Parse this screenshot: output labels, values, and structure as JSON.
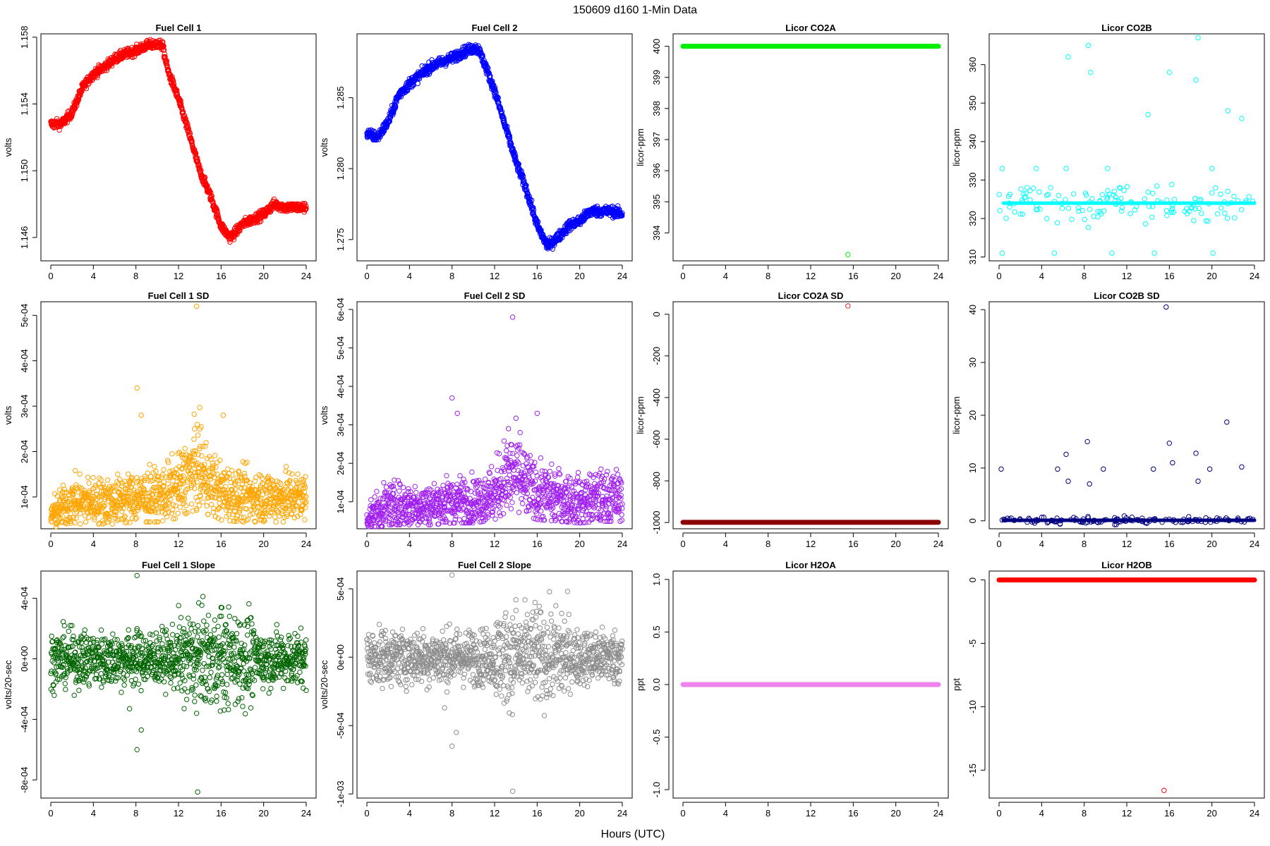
{
  "figure": {
    "title": "150609   d160   1-Min Data",
    "xlabel": "Hours (UTC)"
  },
  "chart_data": [
    {
      "type": "scatter",
      "title": "Fuel Cell 1",
      "ylabel": "volts",
      "color": "#ff0000",
      "xlim": [
        0,
        24
      ],
      "ylim": [
        1.1446,
        1.1582
      ],
      "xticks": [
        0,
        4,
        8,
        12,
        16,
        20,
        24
      ],
      "yticks": [
        1.146,
        1.15,
        1.154,
        1.158
      ],
      "yticklabels": [
        "1.146",
        "1.150",
        "1.154",
        "1.158"
      ],
      "series": [
        {
          "x": [
            0,
            1,
            2,
            3,
            4,
            5,
            6,
            7,
            8,
            9,
            10,
            10.5,
            11,
            12,
            13,
            14,
            15,
            16,
            16.8,
            17.2,
            18,
            19,
            20,
            21,
            22,
            23,
            24
          ],
          "y": [
            1.1528,
            1.1528,
            1.1535,
            1.155,
            1.1558,
            1.1562,
            1.1567,
            1.157,
            1.1572,
            1.1575,
            1.1576,
            1.1575,
            1.156,
            1.1543,
            1.1522,
            1.15,
            1.1485,
            1.1467,
            1.146,
            1.1462,
            1.1468,
            1.1471,
            1.1474,
            1.148,
            1.1478,
            1.1478,
            1.1478
          ]
        }
      ]
    },
    {
      "type": "scatter",
      "title": "Fuel Cell 2",
      "ylabel": "volts",
      "color": "#0000ff",
      "xlim": [
        0,
        24
      ],
      "ylim": [
        1.2735,
        1.2895
      ],
      "xticks": [
        0,
        4,
        8,
        12,
        16,
        20,
        24
      ],
      "yticks": [
        1.275,
        1.28,
        1.285
      ],
      "yticklabels": [
        "1.275",
        "1.280",
        "1.285"
      ],
      "series": [
        {
          "x": [
            0,
            1,
            2,
            3,
            4,
            5,
            6,
            7,
            8,
            9,
            10,
            10.5,
            11,
            12,
            13,
            14,
            15,
            16,
            17,
            18,
            19,
            20,
            21,
            22,
            23,
            24
          ],
          "y": [
            1.2825,
            1.2822,
            1.2833,
            1.2852,
            1.286,
            1.2866,
            1.2872,
            1.2875,
            1.2878,
            1.2882,
            1.2885,
            1.2884,
            1.2875,
            1.2855,
            1.283,
            1.2805,
            1.2785,
            1.276,
            1.2745,
            1.2752,
            1.276,
            1.2763,
            1.277,
            1.277,
            1.277,
            1.2768
          ]
        }
      ]
    },
    {
      "type": "scatter",
      "title": "Licor CO2A",
      "ylabel": "licor-ppm",
      "color": "#00ee00",
      "xlim": [
        0,
        24
      ],
      "ylim": [
        393.1,
        400.4
      ],
      "xticks": [
        0,
        4,
        8,
        12,
        16,
        20,
        24
      ],
      "yticks": [
        394,
        395,
        396,
        397,
        398,
        399,
        400
      ],
      "yticklabels": [
        "394",
        "395",
        "396",
        "397",
        "398",
        "399",
        "400"
      ],
      "series": [
        {
          "x": [
            0,
            24
          ],
          "y": [
            400,
            400
          ]
        }
      ],
      "outliers": [
        {
          "x": 15.5,
          "y": 393.3
        }
      ]
    },
    {
      "type": "scatter",
      "title": "Licor CO2B",
      "ylabel": "licor-ppm",
      "color": "#00ffff",
      "xlim": [
        0,
        24
      ],
      "ylim": [
        309,
        368
      ],
      "xticks": [
        0,
        4,
        8,
        12,
        16,
        20,
        24
      ],
      "yticks": [
        310,
        320,
        330,
        340,
        350,
        360
      ],
      "yticklabels": [
        "310",
        "320",
        "330",
        "340",
        "350",
        "360"
      ],
      "baseline": 324,
      "outliers": [
        {
          "x": 6.5,
          "y": 362
        },
        {
          "x": 8.4,
          "y": 365
        },
        {
          "x": 8.6,
          "y": 358
        },
        {
          "x": 18.7,
          "y": 367
        },
        {
          "x": 18.5,
          "y": 356
        },
        {
          "x": 16.0,
          "y": 358
        },
        {
          "x": 14.0,
          "y": 347
        },
        {
          "x": 21.5,
          "y": 348
        },
        {
          "x": 22.8,
          "y": 346
        },
        {
          "x": 0.3,
          "y": 311
        },
        {
          "x": 5.2,
          "y": 311
        },
        {
          "x": 10.6,
          "y": 311
        },
        {
          "x": 14.6,
          "y": 311
        },
        {
          "x": 20.1,
          "y": 311
        },
        {
          "x": 0.3,
          "y": 333
        },
        {
          "x": 6.3,
          "y": 333
        },
        {
          "x": 10.2,
          "y": 333
        },
        {
          "x": 20.0,
          "y": 333
        },
        {
          "x": 3.5,
          "y": 333
        }
      ]
    },
    {
      "type": "scatter",
      "title": "Fuel Cell 1 SD",
      "ylabel": "volts",
      "color": "#ffa500",
      "xlim": [
        0,
        24
      ],
      "ylim": [
        3e-05,
        0.00053
      ],
      "xticks": [
        0,
        4,
        8,
        12,
        16,
        20,
        24
      ],
      "yticks": [
        0.0001,
        0.0002,
        0.0003,
        0.0004,
        0.0005
      ],
      "yticklabels": [
        "1e-04",
        "2e-04",
        "3e-04",
        "4e-04",
        "5e-04"
      ],
      "series": [
        {
          "x": [
            0,
            2,
            4,
            6,
            8,
            10,
            12,
            13,
            14,
            15,
            16,
            18,
            20,
            22,
            24
          ],
          "y": [
            6e-05,
            9e-05,
            9e-05,
            9e-05,
            0.0001,
            0.0001,
            0.00012,
            0.00015,
            0.00016,
            0.00013,
            0.00011,
            0.0001,
            0.0001,
            0.0001,
            0.0001
          ]
        }
      ],
      "outliers": [
        {
          "x": 13.7,
          "y": 0.00052
        },
        {
          "x": 8.1,
          "y": 0.00034
        },
        {
          "x": 8.5,
          "y": 0.00028
        },
        {
          "x": 16.2,
          "y": 0.00028
        },
        {
          "x": 13.5,
          "y": 0.00025
        },
        {
          "x": 14.0,
          "y": 0.00025
        }
      ]
    },
    {
      "type": "scatter",
      "title": "Fuel Cell 2 SD",
      "ylabel": "volts",
      "color": "#a020f0",
      "xlim": [
        0,
        24
      ],
      "ylim": [
        3e-05,
        0.00062
      ],
      "xticks": [
        0,
        4,
        8,
        12,
        16,
        20,
        24
      ],
      "yticks": [
        0.0001,
        0.0002,
        0.0003,
        0.0004,
        0.0005,
        0.0006
      ],
      "yticklabels": [
        "1e-04",
        "2e-04",
        "3e-04",
        "4e-04",
        "5e-04",
        "6e-04"
      ],
      "series": [
        {
          "x": [
            0,
            2,
            4,
            6,
            8,
            10,
            12,
            13,
            14,
            15,
            16,
            18,
            20,
            22,
            24
          ],
          "y": [
            6e-05,
            9e-05,
            9e-05,
            9e-05,
            0.0001,
            0.0001,
            0.00012,
            0.00016,
            0.00017,
            0.00014,
            0.00012,
            0.00011,
            0.0001,
            0.00011,
            0.00011
          ]
        }
      ],
      "outliers": [
        {
          "x": 13.7,
          "y": 0.00058
        },
        {
          "x": 8.0,
          "y": 0.00037
        },
        {
          "x": 8.5,
          "y": 0.00033
        },
        {
          "x": 16.0,
          "y": 0.00033
        },
        {
          "x": 13.3,
          "y": 0.00029
        },
        {
          "x": 14.4,
          "y": 0.00028
        }
      ]
    },
    {
      "type": "scatter",
      "title": "Licor CO2A SD",
      "ylabel": "licor-ppm",
      "color": "#8b0000",
      "xlim": [
        0,
        24
      ],
      "ylim": [
        -1030,
        60
      ],
      "xticks": [
        0,
        4,
        8,
        12,
        16,
        20,
        24
      ],
      "yticks": [
        -1000,
        -800,
        -600,
        -400,
        -200,
        0
      ],
      "yticklabels": [
        "-1000",
        "-800",
        "-600",
        "-400",
        "-200",
        "0"
      ],
      "series": [
        {
          "x": [
            0,
            24
          ],
          "y": [
            -999,
            -999
          ]
        }
      ],
      "outliers": [
        {
          "x": 15.5,
          "y": 40,
          "color": "#dd2222"
        }
      ]
    },
    {
      "type": "scatter",
      "title": "Licor CO2B SD",
      "ylabel": "licor-ppm",
      "color": "#000080",
      "xlim": [
        0,
        24
      ],
      "ylim": [
        -1.5,
        41.5
      ],
      "xticks": [
        0,
        4,
        8,
        12,
        16,
        20,
        24
      ],
      "yticks": [
        0,
        10,
        20,
        30,
        40
      ],
      "yticklabels": [
        "0",
        "10",
        "20",
        "30",
        "40"
      ],
      "baseline": 0.1,
      "outliers": [
        {
          "x": 15.7,
          "y": 40.5
        },
        {
          "x": 21.4,
          "y": 18.7
        },
        {
          "x": 8.3,
          "y": 15
        },
        {
          "x": 16.0,
          "y": 14.7
        },
        {
          "x": 18.5,
          "y": 12.8
        },
        {
          "x": 6.3,
          "y": 12.6
        },
        {
          "x": 0.2,
          "y": 9.8
        },
        {
          "x": 5.5,
          "y": 9.8
        },
        {
          "x": 9.8,
          "y": 9.8
        },
        {
          "x": 14.5,
          "y": 9.8
        },
        {
          "x": 19.8,
          "y": 9.8
        },
        {
          "x": 22.8,
          "y": 10.2
        },
        {
          "x": 6.5,
          "y": 7.5
        },
        {
          "x": 8.5,
          "y": 7
        },
        {
          "x": 18.7,
          "y": 7.5
        },
        {
          "x": 16.3,
          "y": 11
        }
      ]
    },
    {
      "type": "scatter",
      "title": "Fuel Cell 1 Slope",
      "ylabel": "volts/20-sec",
      "color": "#006400",
      "xlim": [
        0,
        24
      ],
      "ylim": [
        -0.00092,
        0.00058
      ],
      "xticks": [
        0,
        4,
        8,
        12,
        16,
        20,
        24
      ],
      "yticks": [
        -0.0008,
        -0.0004,
        0,
        0.0004
      ],
      "yticklabels": [
        "-8e-04",
        "-4e-04",
        "0e+00",
        "4e-04"
      ],
      "series": [
        {
          "x": [
            0,
            24
          ],
          "y": [
            0,
            0
          ]
        }
      ],
      "outliers": [
        {
          "x": 8.1,
          "y": 0.00055
        },
        {
          "x": 13.8,
          "y": -0.00088
        },
        {
          "x": 8.1,
          "y": -0.0006
        },
        {
          "x": 8.5,
          "y": -0.00047
        },
        {
          "x": 13.9,
          "y": 0.00037
        },
        {
          "x": 16.0,
          "y": 0.00034
        },
        {
          "x": 7.4,
          "y": -0.00033
        },
        {
          "x": 13.7,
          "y": -0.00036
        }
      ]
    },
    {
      "type": "scatter",
      "title": "Fuel Cell 2 Slope",
      "ylabel": "volts/20-sec",
      "color": "#8c8c8c",
      "xlim": [
        0,
        24
      ],
      "ylim": [
        -0.00103,
        0.00063
      ],
      "xticks": [
        0,
        4,
        8,
        12,
        16,
        20,
        24
      ],
      "yticks": [
        -0.001,
        -0.0005,
        0,
        0.0005
      ],
      "yticklabels": [
        "-1e-03",
        "-5e-04",
        "0e+00",
        "5e-04"
      ],
      "series": [
        {
          "x": [
            0,
            24
          ],
          "y": [
            0,
            0
          ]
        }
      ],
      "outliers": [
        {
          "x": 8.0,
          "y": 0.0006
        },
        {
          "x": 13.7,
          "y": -0.00098
        },
        {
          "x": 8.0,
          "y": -0.00065
        },
        {
          "x": 8.4,
          "y": -0.00055
        },
        {
          "x": 14.0,
          "y": 0.00042
        },
        {
          "x": 15.8,
          "y": 0.0004
        },
        {
          "x": 7.3,
          "y": -0.00037
        },
        {
          "x": 18.3,
          "y": 0.00032
        }
      ]
    },
    {
      "type": "scatter",
      "title": "Licor H2OA",
      "ylabel": "ppt",
      "color": "#ee82ee",
      "xlim": [
        0,
        24
      ],
      "ylim": [
        -1.08,
        1.08
      ],
      "xticks": [
        0,
        4,
        8,
        12,
        16,
        20,
        24
      ],
      "yticks": [
        -1.0,
        -0.5,
        0.0,
        0.5,
        1.0
      ],
      "yticklabels": [
        "-1.0",
        "-0.5",
        "0.0",
        "0.5",
        "1.0"
      ],
      "series": [
        {
          "x": [
            0,
            24
          ],
          "y": [
            0,
            0
          ]
        }
      ]
    },
    {
      "type": "scatter",
      "title": "Licor H2OB",
      "ylabel": "ppt",
      "color": "#ff0000",
      "xlim": [
        0,
        24
      ],
      "ylim": [
        -17.2,
        0.7
      ],
      "xticks": [
        0,
        4,
        8,
        12,
        16,
        20,
        24
      ],
      "yticks": [
        -15,
        -10,
        -5,
        0
      ],
      "yticklabels": [
        "-15",
        "-10",
        "-5",
        "0"
      ],
      "series": [
        {
          "x": [
            0,
            24
          ],
          "y": [
            0,
            0
          ]
        }
      ],
      "outliers": [
        {
          "x": 15.5,
          "y": -16.6
        }
      ]
    }
  ]
}
